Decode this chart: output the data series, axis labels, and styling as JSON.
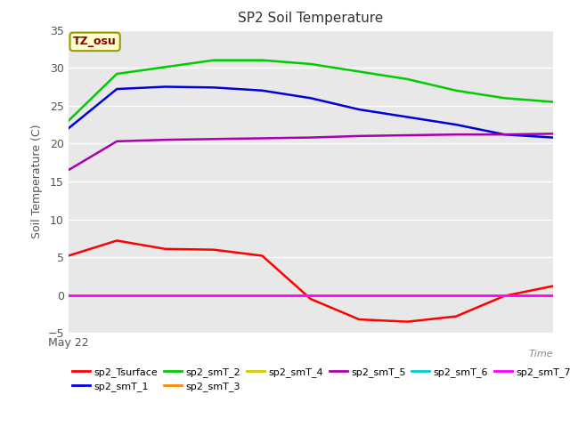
{
  "title": "SP2 Soil Temperature",
  "xlabel": "Time",
  "ylabel": "Soil Temperature (C)",
  "ylim": [
    -5,
    35
  ],
  "yticks": [
    -5,
    0,
    5,
    10,
    15,
    20,
    25,
    30,
    35
  ],
  "xlabel_start": "May 22",
  "annotation_text": "TZ_osu",
  "annotation_color": "#8b0000",
  "annotation_bg": "#ffffcc",
  "annotation_border": "#999900",
  "series_order": [
    "sp2_Tsurface",
    "sp2_smT_1",
    "sp2_smT_2",
    "sp2_smT_3",
    "sp2_smT_4",
    "sp2_smT_5",
    "sp2_smT_6",
    "sp2_smT_7"
  ],
  "series": {
    "sp2_Tsurface": {
      "color": "#ff0000",
      "x": [
        0,
        1,
        2,
        3,
        4,
        5,
        6,
        7,
        8,
        9,
        10
      ],
      "y": [
        5.2,
        7.2,
        6.1,
        6.0,
        5.2,
        -0.5,
        -3.2,
        -3.5,
        -2.8,
        -0.1,
        1.2
      ]
    },
    "sp2_smT_1": {
      "color": "#0000dd",
      "x": [
        0,
        1,
        2,
        3,
        4,
        5,
        6,
        7,
        8,
        9,
        10
      ],
      "y": [
        22.0,
        27.2,
        27.5,
        27.4,
        27.0,
        26.0,
        24.5,
        23.5,
        22.5,
        21.2,
        20.8
      ]
    },
    "sp2_smT_2": {
      "color": "#00cc00",
      "x": [
        0,
        1,
        2,
        3,
        4,
        5,
        6,
        7,
        8,
        9,
        10
      ],
      "y": [
        23.0,
        29.2,
        30.1,
        31.0,
        31.0,
        30.5,
        29.5,
        28.5,
        27.0,
        26.0,
        25.5
      ]
    },
    "sp2_smT_3": {
      "color": "#ff8800",
      "x": [
        0,
        1,
        2,
        3,
        4,
        5,
        6,
        7,
        8,
        9,
        10
      ],
      "y": [
        0.0,
        0.0,
        0.0,
        0.0,
        0.0,
        0.0,
        0.0,
        0.0,
        0.0,
        0.0,
        0.0
      ]
    },
    "sp2_smT_4": {
      "color": "#cccc00",
      "x": [
        0,
        1,
        2,
        3,
        4,
        5,
        6,
        7,
        8,
        9,
        10
      ],
      "y": [
        0.0,
        0.0,
        0.0,
        0.0,
        0.0,
        0.0,
        0.0,
        0.0,
        0.0,
        0.0,
        0.0
      ]
    },
    "sp2_smT_5": {
      "color": "#aa00aa",
      "x": [
        0,
        1,
        2,
        3,
        4,
        5,
        6,
        7,
        8,
        9,
        10
      ],
      "y": [
        16.5,
        20.3,
        20.5,
        20.6,
        20.7,
        20.8,
        21.0,
        21.1,
        21.2,
        21.2,
        21.3
      ]
    },
    "sp2_smT_6": {
      "color": "#00cccc",
      "x": [
        0,
        1,
        2,
        3,
        4,
        5,
        6,
        7,
        8,
        9,
        10
      ],
      "y": [
        0.0,
        0.0,
        0.0,
        0.0,
        0.0,
        0.0,
        0.0,
        0.0,
        0.0,
        0.0,
        0.0
      ]
    },
    "sp2_smT_7": {
      "color": "#ff00ff",
      "x": [
        0,
        1,
        2,
        3,
        4,
        5,
        6,
        7,
        8,
        9,
        10
      ],
      "y": [
        0.0,
        0.0,
        0.0,
        0.0,
        0.0,
        0.0,
        0.0,
        0.0,
        0.0,
        0.0,
        0.0
      ]
    }
  },
  "fig_bg_color": "#ffffff",
  "plot_bg_color": "#e8e8e8",
  "grid_color": "#ffffff",
  "tick_color": "#555555",
  "legend_ncol": 6,
  "linewidth": 1.8
}
